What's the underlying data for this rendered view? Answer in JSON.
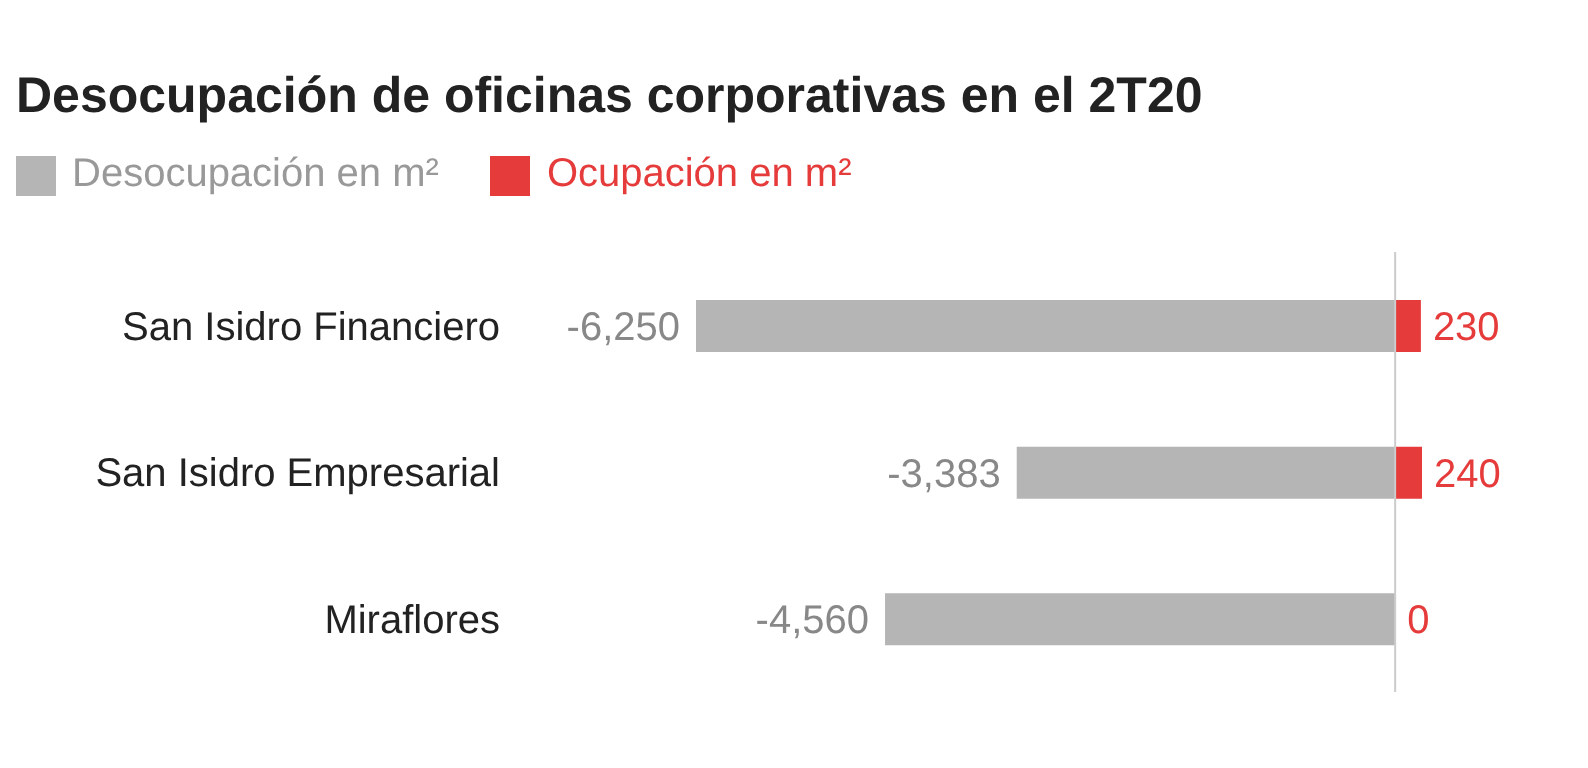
{
  "chart_data": {
    "type": "bar",
    "orientation": "horizontal",
    "stacked": true,
    "title": "Desocupación de oficinas corporativas en el 2T20",
    "categories": [
      "San Isidro Financiero",
      "San Isidro Empresarial",
      "Miraflores"
    ],
    "series": [
      {
        "name": "Desocupación en m²",
        "color": "#b5b5b5",
        "values": [
          -6250,
          -3383,
          -4560
        ],
        "value_labels": [
          "-6,250",
          "-3,383",
          "-4,560"
        ]
      },
      {
        "name": "Ocupación en m²",
        "color": "#e63b3b",
        "values": [
          230,
          240,
          0
        ],
        "value_labels": [
          "230",
          "240",
          "0"
        ]
      }
    ],
    "tick_labels": "y",
    "legend": "top left",
    "ref_lines": [
      {
        "axis": "x",
        "value": 0,
        "color": "#cccccc"
      }
    ]
  }
}
